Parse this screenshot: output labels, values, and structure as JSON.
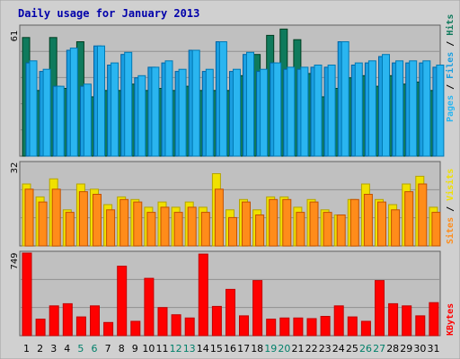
{
  "chart_data": {
    "type": "bar",
    "title": "Daily usage for January 2013",
    "categories": [
      "1",
      "2",
      "3",
      "4",
      "5",
      "6",
      "7",
      "8",
      "9",
      "10",
      "11",
      "12",
      "13",
      "14",
      "15",
      "16",
      "17",
      "18",
      "19",
      "20",
      "21",
      "22",
      "23",
      "24",
      "25",
      "26",
      "27",
      "28",
      "29",
      "30",
      "31"
    ],
    "weekend_days": [
      "5",
      "6",
      "12",
      "13",
      "19",
      "20",
      "26",
      "27"
    ],
    "grid": true,
    "colors": {
      "hits": "#0f7a5c",
      "files": "#1a9ee0",
      "pages": "#2ab5f0",
      "visits": "#f0e000",
      "sites": "#ff8c1a",
      "kbytes": "#ff0000",
      "title": "#0000aa",
      "weekend": "#00806a",
      "plot_bg": "#c0c0c0",
      "frame_bg": "#d0d0d0"
    },
    "panels": [
      {
        "ymax_label": "61",
        "ylim": [
          0,
          61
        ],
        "legend": [
          {
            "label": "Pages",
            "color": "#2ab5f0"
          },
          {
            "label": "Files",
            "color": "#1a9ee0"
          },
          {
            "label": "Hits",
            "color": "#0f7a5c"
          }
        ],
        "series": [
          {
            "name": "Hits",
            "color": "#0f7a5c",
            "values": [
              56,
              31,
              56,
              32,
              54,
              28,
              31,
              31,
              34,
              31,
              32,
              31,
              33,
              31,
              31,
              31,
              38,
              48,
              57,
              60,
              55,
              39,
              28,
              32,
              37,
              38,
              33,
              38,
              34,
              35,
              31
            ]
          },
          {
            "name": "Files",
            "color": "#1a9ee0",
            "values": [
              44,
              40,
              33,
              50,
              33,
              52,
              43,
              48,
              37,
              42,
              44,
              40,
              50,
              40,
              54,
              40,
              48,
              40,
              44,
              41,
              41,
              42,
              42,
              54,
              43,
              44,
              47,
              44,
              44,
              44,
              42
            ]
          },
          {
            "name": "Pages",
            "color": "#2ab5f0",
            "values": [
              45,
              41,
              33,
              51,
              34,
              52,
              44,
              49,
              38,
              42,
              45,
              41,
              50,
              41,
              54,
              41,
              49,
              41,
              44,
              42,
              42,
              43,
              43,
              54,
              44,
              45,
              48,
              45,
              45,
              45,
              43
            ]
          }
        ]
      },
      {
        "ymax_label": "32",
        "ylim": [
          0,
          32
        ],
        "legend": [
          {
            "label": "Sites",
            "color": "#ff8c1a"
          },
          {
            "label": "Visits",
            "color": "#f0e000"
          }
        ],
        "series": [
          {
            "name": "Visits",
            "color": "#f0e000",
            "values": [
              24,
              19,
              26,
              14,
              24,
              22,
              16,
              19,
              18,
              15,
              17,
              15,
              17,
              15,
              28,
              14,
              18,
              14,
              19,
              19,
              15,
              18,
              14,
              12,
              18,
              24,
              18,
              16,
              24,
              27,
              15
            ]
          },
          {
            "name": "Sites",
            "color": "#ff8c1a",
            "values": [
              22,
              17,
              22,
              13,
              21,
              20,
              14,
              18,
              17,
              13,
              15,
              13,
              15,
              13,
              22,
              11,
              17,
              12,
              18,
              18,
              13,
              17,
              13,
              12,
              18,
              20,
              17,
              14,
              21,
              24,
              13
            ]
          }
        ]
      },
      {
        "ymax_label": "749",
        "ylim": [
          0,
          749
        ],
        "legend": [
          {
            "label": "KBytes",
            "color": "#ff0000"
          }
        ],
        "series": [
          {
            "name": "KBytes",
            "color": "#ff0000",
            "values": [
              749,
              150,
              270,
              290,
              170,
              270,
              120,
              630,
              130,
              520,
              255,
              190,
              160,
              740,
              265,
              420,
              180,
              500,
              150,
              160,
              160,
              155,
              175,
              270,
              170,
              130,
              500,
              290,
              270,
              180,
              300
            ]
          }
        ]
      }
    ]
  }
}
